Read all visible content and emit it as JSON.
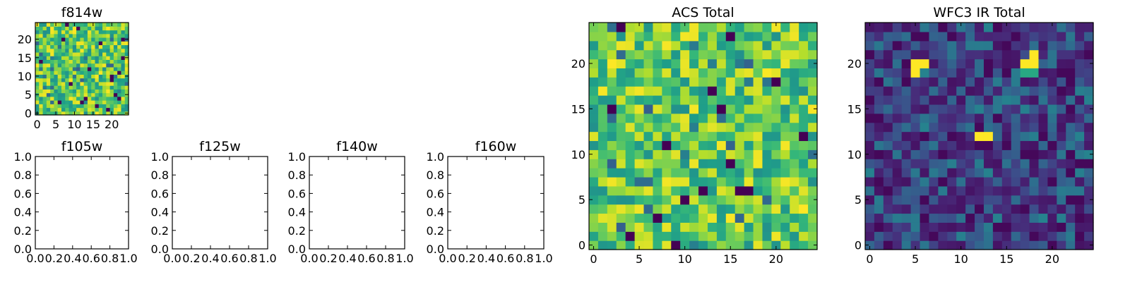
{
  "chart_data": [
    {
      "type": "heatmap",
      "title": "f814w",
      "colormap": "viridis",
      "grid": false,
      "size": 25,
      "seed": 814,
      "peak": "moderate",
      "xlim": [
        -0.5,
        24.5
      ],
      "ylim": [
        -0.5,
        24.5
      ],
      "xticks": [
        0,
        5,
        10,
        15,
        20
      ],
      "yticks": [
        0,
        5,
        10,
        15,
        20
      ]
    },
    {
      "type": "empty",
      "title": "f105w",
      "grid": false,
      "xlim": [
        0,
        1
      ],
      "ylim": [
        0,
        1
      ],
      "xticks": [
        0.0,
        0.2,
        0.4,
        0.6,
        0.8,
        1.0
      ],
      "xtick_labels": [
        "0.0",
        "0.2",
        "0.4",
        "0.6",
        "0.8",
        "1.0"
      ],
      "yticks": [
        0.0,
        0.2,
        0.4,
        0.6,
        0.8,
        1.0
      ],
      "ytick_labels": [
        "0.0",
        "0.2",
        "0.4",
        "0.6",
        "0.8",
        "1.0"
      ]
    },
    {
      "type": "empty",
      "title": "f125w",
      "grid": false,
      "xlim": [
        0,
        1
      ],
      "ylim": [
        0,
        1
      ],
      "xticks": [
        0.0,
        0.2,
        0.4,
        0.6,
        0.8,
        1.0
      ],
      "xtick_labels": [
        "0.0",
        "0.2",
        "0.4",
        "0.6",
        "0.8",
        "1.0"
      ],
      "yticks": [
        0.0,
        0.2,
        0.4,
        0.6,
        0.8,
        1.0
      ],
      "ytick_labels": [
        "0.0",
        "0.2",
        "0.4",
        "0.6",
        "0.8",
        "1.0"
      ]
    },
    {
      "type": "empty",
      "title": "f140w",
      "grid": false,
      "xlim": [
        0,
        1
      ],
      "ylim": [
        0,
        1
      ],
      "xticks": [
        0.0,
        0.2,
        0.4,
        0.6,
        0.8,
        1.0
      ],
      "xtick_labels": [
        "0.0",
        "0.2",
        "0.4",
        "0.6",
        "0.8",
        "1.0"
      ],
      "yticks": [
        0.0,
        0.2,
        0.4,
        0.6,
        0.8,
        1.0
      ],
      "ytick_labels": [
        "0.0",
        "0.2",
        "0.4",
        "0.6",
        "0.8",
        "1.0"
      ]
    },
    {
      "type": "empty",
      "title": "f160w",
      "grid": false,
      "xlim": [
        0,
        1
      ],
      "ylim": [
        0,
        1
      ],
      "xticks": [
        0.0,
        0.2,
        0.4,
        0.6,
        0.8,
        1.0
      ],
      "xtick_labels": [
        "0.0",
        "0.2",
        "0.4",
        "0.6",
        "0.8",
        "1.0"
      ],
      "yticks": [
        0.0,
        0.2,
        0.4,
        0.6,
        0.8,
        1.0
      ],
      "ytick_labels": [
        "0.0",
        "0.2",
        "0.4",
        "0.6",
        "0.8",
        "1.0"
      ]
    },
    {
      "type": "heatmap",
      "title": "ACS Total",
      "colormap": "viridis",
      "grid": false,
      "size": 25,
      "seed": 4711,
      "peak": "moderate",
      "xlim": [
        -0.5,
        24.5
      ],
      "ylim": [
        -0.5,
        24.5
      ],
      "xticks": [
        0,
        5,
        10,
        15,
        20
      ],
      "yticks": [
        0,
        5,
        10,
        15,
        20
      ]
    },
    {
      "type": "heatmap",
      "title": "WFC3 IR Total",
      "colormap": "viridis",
      "grid": false,
      "size": 25,
      "seed": 160,
      "peak": "low",
      "hot_pixels": [
        [
          5,
          20
        ],
        [
          6,
          20
        ],
        [
          5,
          19
        ],
        [
          18,
          21
        ],
        [
          17,
          20
        ],
        [
          18,
          20
        ],
        [
          12,
          12
        ],
        [
          13,
          12
        ]
      ],
      "warm_pixels": [
        [
          17,
          19
        ],
        [
          18,
          19
        ]
      ],
      "xlim": [
        -0.5,
        24.5
      ],
      "ylim": [
        -0.5,
        24.5
      ],
      "xticks": [
        0,
        5,
        10,
        15,
        20
      ],
      "yticks": [
        0,
        5,
        10,
        15,
        20
      ]
    }
  ]
}
